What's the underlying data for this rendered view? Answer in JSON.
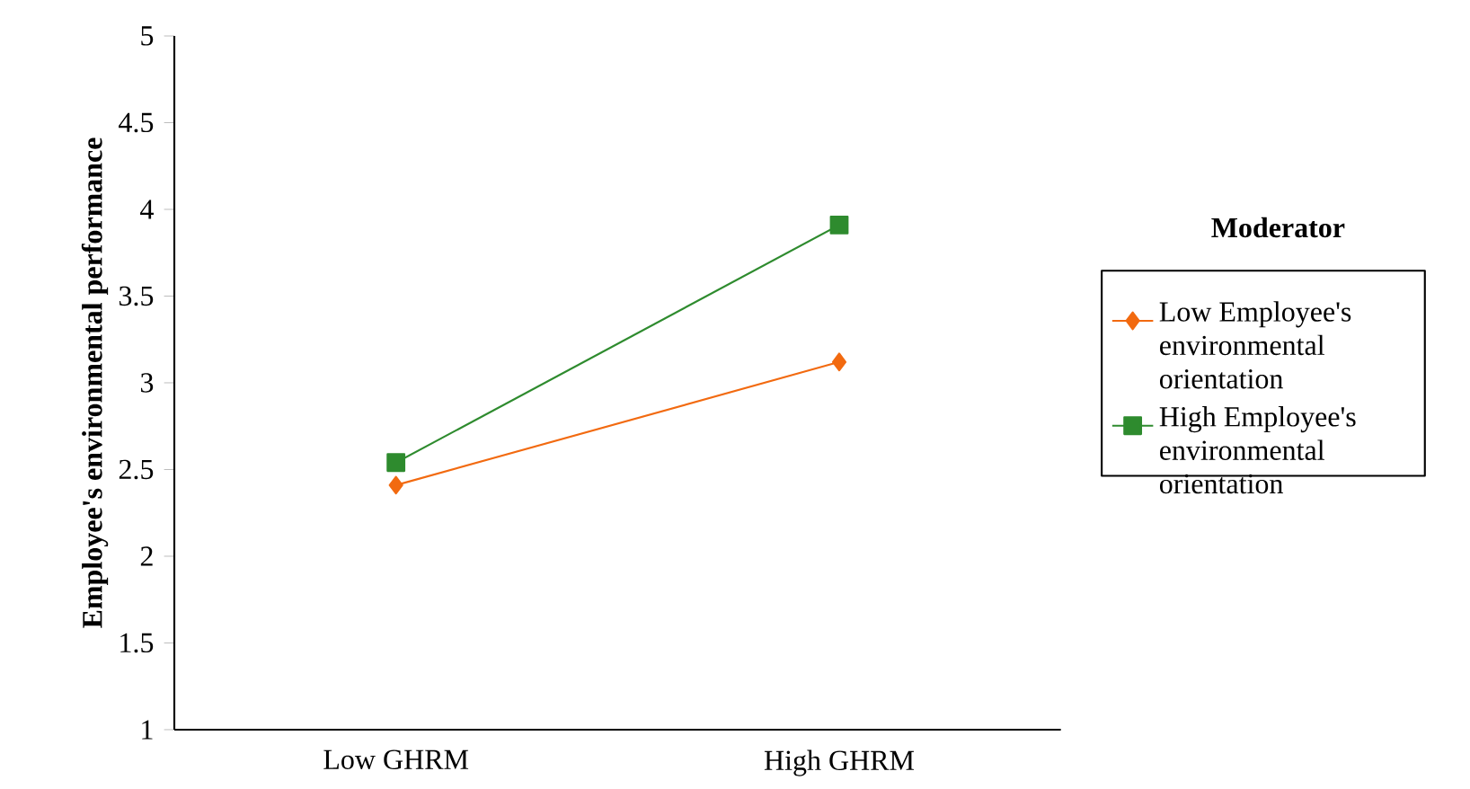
{
  "chart_data": {
    "type": "line",
    "ylabel": "**Employee's environmental performance**",
    "legend_title": "**Moderator**",
    "categories": [
      "Low GHRM",
      "High GHRM"
    ],
    "series": [
      {
        "name": "Low Employee's environmental orientation",
        "color": "#f26a10",
        "marker": "diamond",
        "values": [
          2.41,
          3.12
        ]
      },
      {
        "name": "High Employee's environmental orientation",
        "color": "#2e8b2e",
        "marker": "square",
        "values": [
          2.54,
          3.91
        ]
      }
    ],
    "ylim": [
      1,
      5
    ],
    "yticks": [
      1,
      1.5,
      2,
      2.5,
      3,
      3.5,
      4,
      4.5,
      5
    ],
    "legend": "right",
    "grid": false,
    "line_style": "solid"
  }
}
